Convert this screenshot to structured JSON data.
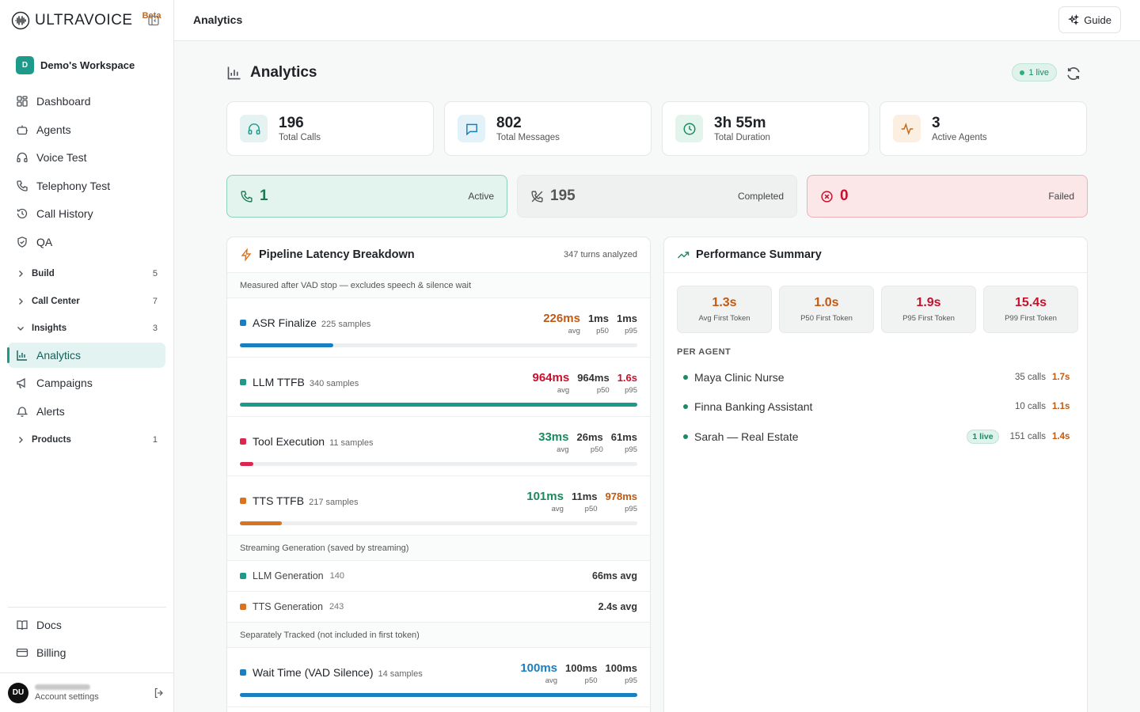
{
  "brand": {
    "name": "ULTRAVOICE",
    "badge": "Beta"
  },
  "workspace": {
    "initial": "D",
    "name": "Demo's Workspace"
  },
  "nav": [
    {
      "label": "Dashboard",
      "icon": "dashboard-icon"
    },
    {
      "label": "Agents",
      "icon": "bot-icon"
    },
    {
      "label": "Voice Test",
      "icon": "headphones-icon"
    },
    {
      "label": "Telephony Test",
      "icon": "phone-icon"
    },
    {
      "label": "Call History",
      "icon": "history-icon"
    },
    {
      "label": "QA",
      "icon": "shield-check-icon"
    }
  ],
  "groups": {
    "build": {
      "label": "Build",
      "count": "5"
    },
    "call_center": {
      "label": "Call Center",
      "count": "7"
    },
    "insights": {
      "label": "Insights",
      "count": "3"
    },
    "products": {
      "label": "Products",
      "count": "1"
    }
  },
  "insights_items": [
    {
      "label": "Analytics",
      "icon": "bar-chart-icon",
      "active": true
    },
    {
      "label": "Campaigns",
      "icon": "megaphone-icon"
    },
    {
      "label": "Alerts",
      "icon": "bell-icon"
    }
  ],
  "footer_nav": [
    {
      "label": "Docs",
      "icon": "book-icon"
    },
    {
      "label": "Billing",
      "icon": "credit-card-icon"
    }
  ],
  "user": {
    "initials": "DU",
    "subtitle": "Account settings"
  },
  "topbar": {
    "title": "Analytics",
    "guide_label": "Guide"
  },
  "page": {
    "title": "Analytics",
    "live_badge": "1 live"
  },
  "stats": [
    {
      "value": "196",
      "label": "Total Calls",
      "icon": "headphones-icon",
      "color": "#1d9a8a",
      "bg": "#e4f3f1"
    },
    {
      "value": "802",
      "label": "Total Messages",
      "icon": "message-icon",
      "color": "#1a7fb5",
      "bg": "#e3f1f9"
    },
    {
      "value": "3h 55m",
      "label": "Total Duration",
      "icon": "clock-icon",
      "color": "#1a8a5e",
      "bg": "#e2f4ec"
    },
    {
      "value": "3",
      "label": "Active Agents",
      "icon": "activity-icon",
      "color": "#c26a1e",
      "bg": "#fbefe2"
    }
  ],
  "status": {
    "active": {
      "value": "1",
      "label": "Active"
    },
    "completed": {
      "value": "195",
      "label": "Completed"
    },
    "failed": {
      "value": "0",
      "label": "Failed"
    }
  },
  "latency": {
    "title": "Pipeline Latency Breakdown",
    "turns": "347 turns analyzed",
    "note": "Measured after VAD stop — excludes speech & silence wait",
    "rows": [
      {
        "name": "ASR Finalize",
        "samples": "225 samples",
        "avg": "226ms",
        "p50": "1ms",
        "p95": "1ms",
        "color": "#1a7fc0",
        "avg_color": "#c05a12",
        "p95_color": "#333",
        "fill": 0.235
      },
      {
        "name": "LLM TTFB",
        "samples": "340 samples",
        "avg": "964ms",
        "p50": "964ms",
        "p95": "1.6s",
        "color": "#1d9a8a",
        "avg_color": "#c8102e",
        "p95_color": "#c8102e",
        "fill": 1.0
      },
      {
        "name": "Tool Execution",
        "samples": "11 samples",
        "avg": "33ms",
        "p50": "26ms",
        "p95": "61ms",
        "color": "#dc2650",
        "avg_color": "#1a8a5e",
        "p95_color": "#333",
        "fill": 0.034
      },
      {
        "name": "TTS TTFB",
        "samples": "217 samples",
        "avg": "101ms",
        "p50": "11ms",
        "p95": "978ms",
        "color": "#d9731f",
        "avg_color": "#1a8a5e",
        "p95_color": "#c05a12",
        "fill": 0.105
      }
    ],
    "streaming_label": "Streaming Generation (saved by streaming)",
    "streaming": [
      {
        "name": "LLM Generation",
        "count": "140",
        "avg": "66ms avg",
        "color": "#1d9a8a"
      },
      {
        "name": "TTS Generation",
        "count": "243",
        "avg": "2.4s avg",
        "color": "#d9731f"
      }
    ],
    "separate_label": "Separately Tracked (not included in first token)",
    "wait": {
      "name": "Wait Time (VAD Silence)",
      "samples": "14 samples",
      "avg": "100ms",
      "p50": "100ms",
      "p95": "100ms",
      "color": "#1a7fc0",
      "avg_color": "#1a7fc0",
      "p95_color": "#333",
      "fill": 1.0
    },
    "labels": {
      "avg": "avg",
      "p50": "p50",
      "p95": "p95"
    }
  },
  "performance": {
    "title": "Performance Summary",
    "cards": [
      {
        "value": "1.3s",
        "label": "Avg First Token",
        "color": "#c05a12"
      },
      {
        "value": "1.0s",
        "label": "P50 First Token",
        "color": "#c05a12"
      },
      {
        "value": "1.9s",
        "label": "P95 First Token",
        "color": "#c8102e"
      },
      {
        "value": "15.4s",
        "label": "P99 First Token",
        "color": "#c8102e"
      }
    ],
    "per_agent_label": "PER AGENT",
    "agents": [
      {
        "name": "Maya Clinic Nurse",
        "calls": "35 calls",
        "time": "1.7s",
        "live": ""
      },
      {
        "name": "Finna Banking Assistant",
        "calls": "10 calls",
        "time": "1.1s",
        "live": ""
      },
      {
        "name": "Sarah — Real Estate",
        "calls": "151 calls",
        "time": "1.4s",
        "live": "1 live"
      }
    ]
  }
}
